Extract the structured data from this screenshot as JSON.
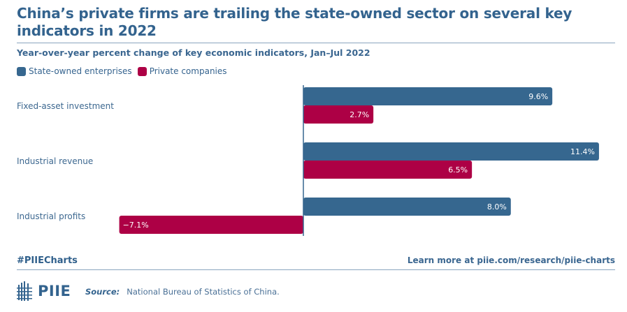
{
  "header": {
    "title": "China’s private firms are trailing the state-owned sector on several key indicators in 2022",
    "subtitle": "Year-over-year percent change of key economic indicators, Jan–Jul 2022"
  },
  "legend": [
    {
      "label": "State-owned enterprises",
      "color": "#36678f"
    },
    {
      "label": "Private companies",
      "color": "#ad0045"
    }
  ],
  "chart_data": {
    "type": "bar",
    "orientation": "horizontal",
    "title": "China’s private firms are trailing the state-owned sector on several key indicators in 2022",
    "subtitle": "Year-over-year percent change of key economic indicators, Jan–Jul 2022",
    "xlabel": "",
    "ylabel": "",
    "categories": [
      "Fixed-asset investment",
      "Industrial revenue",
      "Industrial profits"
    ],
    "series": [
      {
        "name": "State-owned enterprises",
        "color": "#36678f",
        "values": [
          9.6,
          11.4,
          8.0
        ],
        "labels": [
          "9.6%",
          "11.4%",
          "8.0%"
        ]
      },
      {
        "name": "Private companies",
        "color": "#ad0045",
        "values": [
          2.7,
          6.5,
          -7.1
        ],
        "labels": [
          "2.7%",
          "6.5%",
          "−7.1%"
        ]
      }
    ],
    "xlim": [
      -7.1,
      11.4
    ],
    "grid": false,
    "legend_position": "top-left",
    "zero_line": true
  },
  "footer": {
    "hashtag": "#PIIECharts",
    "learn_more": "Learn more at piie.com/research/piie-charts",
    "logo_text": "PIIE",
    "source_label": "Source:",
    "source_text": "National Bureau of Statistics of China."
  }
}
